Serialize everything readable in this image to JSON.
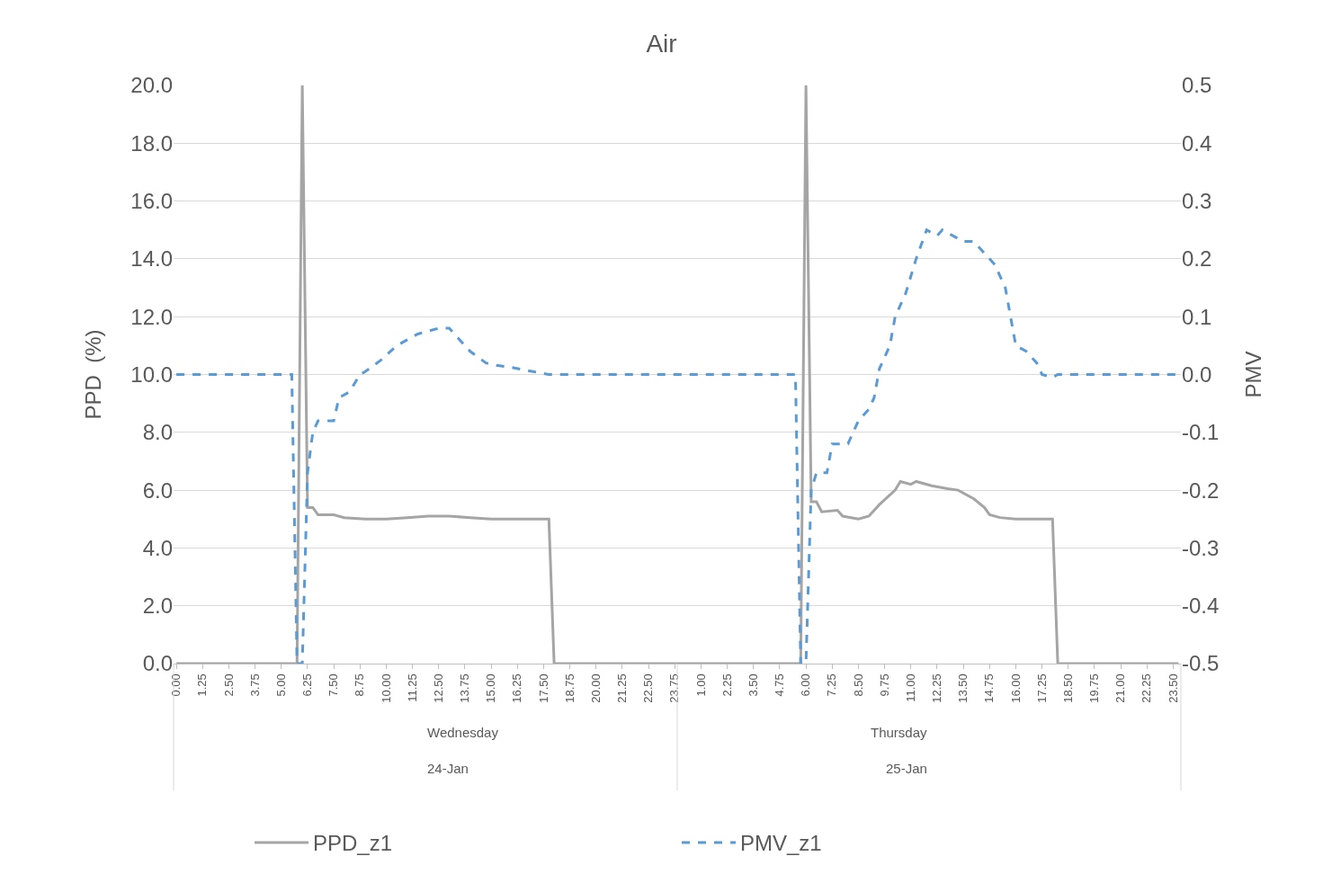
{
  "chart_data": {
    "type": "line",
    "title": "Air",
    "ylabel": "PPD  (%)",
    "y2label": "PMV",
    "xlim": [
      "--01-23T23:52",
      "--01-25T23:52"
    ],
    "xticks": [
      {
        "value": "--01-24T00:00",
        "label": "0.00"
      },
      {
        "value": "--01-24T01:15",
        "label": "1.25"
      },
      {
        "value": "--01-24T02:30",
        "label": "2.50"
      },
      {
        "value": "--01-24T03:45",
        "label": "3.75"
      },
      {
        "value": "--01-24T05:00",
        "label": "5.00"
      },
      {
        "value": "--01-24T06:15",
        "label": "6.25"
      },
      {
        "value": "--01-24T07:30",
        "label": "7.50"
      },
      {
        "value": "--01-24T08:45",
        "label": "8.75"
      },
      {
        "value": "--01-24T10:00",
        "label": "10.00"
      },
      {
        "value": "--01-24T11:15",
        "label": "11.25"
      },
      {
        "value": "--01-24T12:30",
        "label": "12.50"
      },
      {
        "value": "--01-24T13:45",
        "label": "13.75"
      },
      {
        "value": "--01-24T15:00",
        "label": "15.00"
      },
      {
        "value": "--01-24T16:15",
        "label": "16.25"
      },
      {
        "value": "--01-24T17:30",
        "label": "17.50"
      },
      {
        "value": "--01-24T18:45",
        "label": "18.75"
      },
      {
        "value": "--01-24T20:00",
        "label": "20.00"
      },
      {
        "value": "--01-24T21:15",
        "label": "21.25"
      },
      {
        "value": "--01-24T22:30",
        "label": "22.50"
      },
      {
        "value": "--01-24T23:45",
        "label": "23.75"
      },
      {
        "value": "--01-25T01:00",
        "label": "1.00"
      },
      {
        "value": "--01-25T02:15",
        "label": "2.25"
      },
      {
        "value": "--01-25T03:30",
        "label": "3.50"
      },
      {
        "value": "--01-25T04:45",
        "label": "4.75"
      },
      {
        "value": "--01-25T06:00",
        "label": "6.00"
      },
      {
        "value": "--01-25T07:15",
        "label": "7.25"
      },
      {
        "value": "--01-25T08:30",
        "label": "8.50"
      },
      {
        "value": "--01-25T09:45",
        "label": "9.75"
      },
      {
        "value": "--01-25T11:00",
        "label": "11.00"
      },
      {
        "value": "--01-25T12:15",
        "label": "12.25"
      },
      {
        "value": "--01-25T13:30",
        "label": "13.50"
      },
      {
        "value": "--01-25T14:45",
        "label": "14.75"
      },
      {
        "value": "--01-25T16:00",
        "label": "16.00"
      },
      {
        "value": "--01-25T17:15",
        "label": "17.25"
      },
      {
        "value": "--01-25T18:30",
        "label": "18.50"
      },
      {
        "value": "--01-25T19:45",
        "label": "19.75"
      },
      {
        "value": "--01-25T21:00",
        "label": "21.00"
      },
      {
        "value": "--01-25T22:15",
        "label": "22.25"
      },
      {
        "value": "--01-25T23:30",
        "label": "23.50"
      }
    ],
    "ylim": [
      0,
      20
    ],
    "yticks": [
      {
        "value": 0,
        "label": "0.0"
      },
      {
        "value": 2,
        "label": "2.0"
      },
      {
        "value": 4,
        "label": "4.0"
      },
      {
        "value": 6,
        "label": "6.0"
      },
      {
        "value": 8,
        "label": "8.0"
      },
      {
        "value": 10,
        "label": "10.0"
      },
      {
        "value": 12,
        "label": "12.0"
      },
      {
        "value": 14,
        "label": "14.0"
      },
      {
        "value": 16,
        "label": "16.0"
      },
      {
        "value": 18,
        "label": "18.0"
      },
      {
        "value": 20,
        "label": "20.0"
      }
    ],
    "y2lim": [
      -0.5,
      0.5
    ],
    "y2ticks": [
      {
        "value": -0.5,
        "label": "-0.5"
      },
      {
        "value": -0.4,
        "label": "-0.4"
      },
      {
        "value": -0.3,
        "label": "-0.3"
      },
      {
        "value": -0.2,
        "label": "-0.2"
      },
      {
        "value": -0.1,
        "label": "-0.1"
      },
      {
        "value": 0,
        "label": "0.0"
      },
      {
        "value": 0.1,
        "label": "0.1"
      },
      {
        "value": 0.2,
        "label": "0.2"
      },
      {
        "value": 0.3,
        "label": "0.3"
      },
      {
        "value": 0.4,
        "label": "0.4"
      },
      {
        "value": 0.5,
        "label": "0.5"
      }
    ],
    "grid": "y",
    "legend": "bottom",
    "marker": "none",
    "annotations": [
      "Wednesday",
      "24-Jan",
      "Thursday",
      "25-Jan"
    ],
    "series": [
      {
        "name": "PPD_z1",
        "color": "#a5a5a5",
        "line_style": "solid",
        "x": [
          "--01-24T00:00",
          "--01-24T05:45",
          "--01-24T06:00",
          "--01-24T06:15",
          "--01-24T06:30",
          "--01-24T06:45",
          "--01-24T07:30",
          "--01-24T08:00",
          "--01-24T09:00",
          "--01-24T10:00",
          "--01-24T11:00",
          "--01-24T12:00",
          "--01-24T13:00",
          "--01-24T14:00",
          "--01-24T15:00",
          "--01-24T17:45",
          "--01-24T18:00",
          "--01-25T05:45",
          "--01-25T06:00",
          "--01-25T06:15",
          "--01-25T06:30",
          "--01-25T06:45",
          "--01-25T07:30",
          "--01-25T07:45",
          "--01-25T08:30",
          "--01-25T09:00",
          "--01-25T09:30",
          "--01-25T10:15",
          "--01-25T10:30",
          "--01-25T11:00",
          "--01-25T11:15",
          "--01-25T12:00",
          "--01-25T12:45",
          "--01-25T13:15",
          "--01-25T14:00",
          "--01-25T14:30",
          "--01-25T14:45",
          "--01-25T15:15",
          "--01-25T16:00",
          "--01-25T17:45",
          "--01-25T18:00",
          "--01-25T23:45"
        ],
        "values": [
          0,
          0,
          20,
          5.4,
          5.4,
          5.15,
          5.15,
          5.05,
          5.0,
          5.0,
          5.05,
          5.1,
          5.1,
          5.05,
          5.0,
          5.0,
          0,
          0,
          20,
          5.6,
          5.6,
          5.25,
          5.3,
          5.1,
          5.0,
          5.1,
          5.5,
          6.0,
          6.3,
          6.2,
          6.3,
          6.15,
          6.05,
          6.0,
          5.7,
          5.4,
          5.15,
          5.05,
          5.0,
          5.0,
          0,
          0
        ]
      },
      {
        "name": "PMV_z1",
        "color": "#5b9bd5",
        "line_style": "dashed",
        "axis": "y2",
        "x": [
          "--01-24T00:00",
          "--01-24T05:30",
          "--01-24T05:45",
          "--01-24T06:00",
          "--01-24T06:15",
          "--01-24T06:30",
          "--01-24T06:45",
          "--01-24T07:30",
          "--01-24T07:45",
          "--01-24T08:15",
          "--01-24T08:45",
          "--01-24T09:00",
          "--01-24T09:45",
          "--01-24T10:30",
          "--01-24T11:00",
          "--01-24T11:30",
          "--01-24T12:30",
          "--01-24T13:00",
          "--01-24T13:30",
          "--01-24T14:00",
          "--01-24T14:45",
          "--01-24T15:15",
          "--01-24T16:00",
          "--01-24T17:00",
          "--01-24T17:45",
          "--01-25T05:30",
          "--01-25T05:45",
          "--01-25T06:00",
          "--01-25T06:15",
          "--01-25T06:30",
          "--01-25T07:00",
          "--01-25T07:15",
          "--01-25T07:45",
          "--01-25T08:00",
          "--01-25T08:30",
          "--01-25T09:00",
          "--01-25T09:15",
          "--01-25T09:30",
          "--01-25T10:00",
          "--01-25T10:15",
          "--01-25T10:45",
          "--01-25T11:15",
          "--01-25T11:45",
          "--01-25T12:15",
          "--01-25T12:30",
          "--01-25T13:00",
          "--01-25T13:30",
          "--01-25T14:00",
          "--01-25T14:30",
          "--01-25T15:00",
          "--01-25T15:30",
          "--01-25T15:45",
          "--01-25T16:00",
          "--01-25T16:30",
          "--01-25T17:00",
          "--01-25T17:15",
          "--01-25T17:45",
          "--01-25T18:00",
          "--01-25T23:45"
        ],
        "values": [
          0,
          0,
          -0.5,
          -0.5,
          -0.17,
          -0.1,
          -0.08,
          -0.08,
          -0.04,
          -0.03,
          0.0,
          0.005,
          0.025,
          0.05,
          0.06,
          0.07,
          0.08,
          0.08,
          0.06,
          0.04,
          0.02,
          0.016,
          0.012,
          0.005,
          0.0,
          0,
          -0.5,
          -0.5,
          -0.2,
          -0.17,
          -0.17,
          -0.12,
          -0.12,
          -0.12,
          -0.08,
          -0.06,
          -0.04,
          0.01,
          0.05,
          0.1,
          0.14,
          0.2,
          0.25,
          0.24,
          0.25,
          0.24,
          0.23,
          0.23,
          0.21,
          0.19,
          0.15,
          0.1,
          0.05,
          0.04,
          0.02,
          0.0,
          -0.005,
          0.0,
          0
        ]
      }
    ]
  }
}
